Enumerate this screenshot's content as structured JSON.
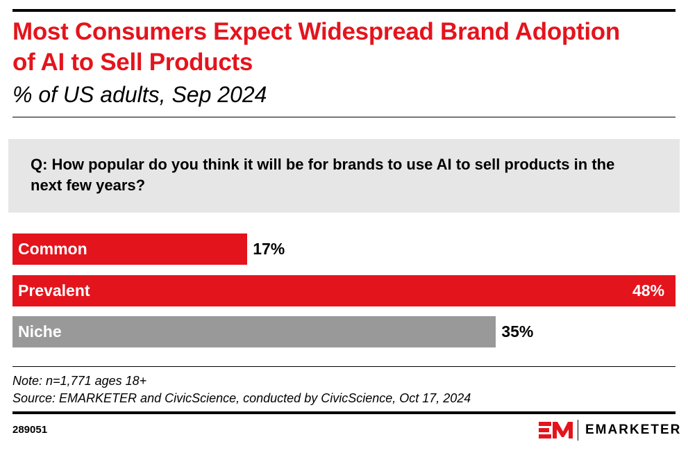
{
  "header": {
    "title": "Most Consumers Expect Widespread Brand Adoption of AI to Sell Products",
    "subtitle": "% of US adults, Sep 2024"
  },
  "question": "Q: How popular do you think it will be for brands to use AI to sell products in the next few years?",
  "chart_data": {
    "type": "bar",
    "orientation": "horizontal",
    "categories": [
      "Common",
      "Prevalent",
      "Niche"
    ],
    "values": [
      17,
      48,
      35
    ],
    "value_labels": [
      "17%",
      "48%",
      "35%"
    ],
    "colors": [
      "#e4141d",
      "#e4141d",
      "#999999"
    ],
    "xlim": [
      0,
      48
    ],
    "grid": false
  },
  "footer": {
    "note": "Note: n=1,771 ages 18+",
    "source": "Source: EMARKETER and CivicScience, conducted by CivicScience, Oct 17, 2024",
    "chart_id": "289051",
    "logo_text": "EMARKETER",
    "logo_mark": "EM"
  }
}
